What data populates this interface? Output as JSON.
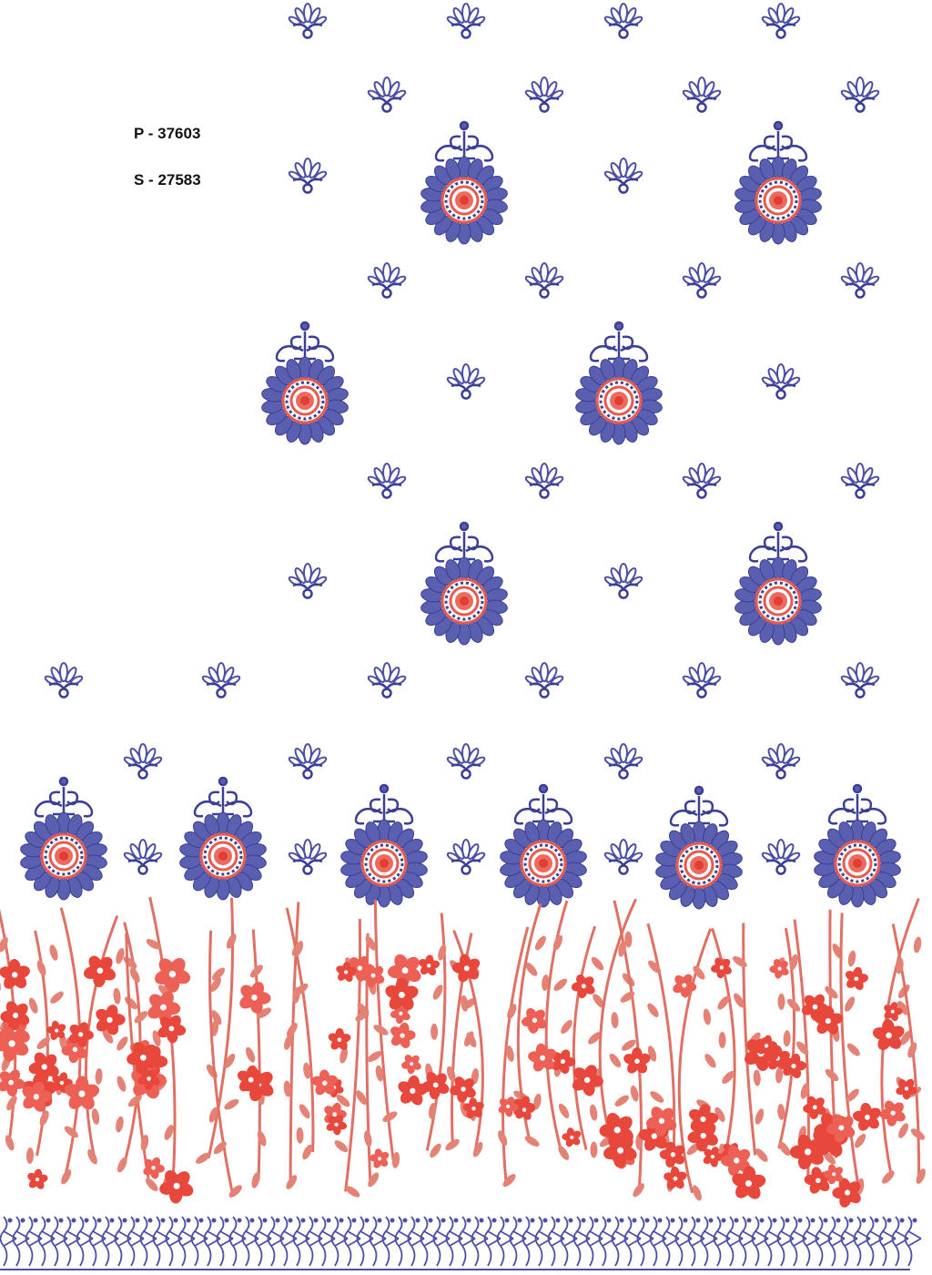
{
  "codes": [
    "P - 37603",
    "S - 27583"
  ]
}
